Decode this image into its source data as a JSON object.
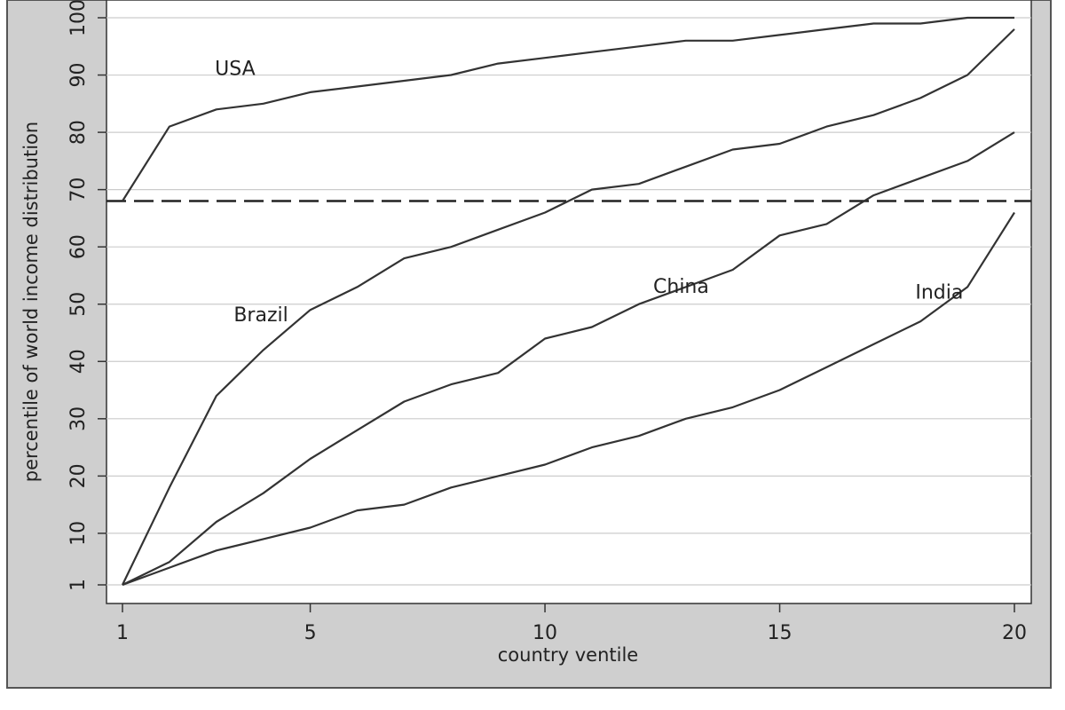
{
  "chart_data": {
    "type": "line",
    "title": "",
    "xlabel": "country ventile",
    "ylabel": "percentile of world income distribution",
    "xlim": [
      1,
      20
    ],
    "ylim": [
      1,
      100
    ],
    "xticks": [
      1,
      5,
      10,
      15,
      20
    ],
    "yticks": [
      1,
      10,
      20,
      30,
      40,
      50,
      60,
      70,
      80,
      90,
      100
    ],
    "grid": true,
    "x": [
      1,
      2,
      3,
      4,
      5,
      6,
      7,
      8,
      9,
      10,
      11,
      12,
      13,
      14,
      15,
      16,
      17,
      18,
      19,
      20
    ],
    "series": [
      {
        "name": "USA",
        "values": [
          68,
          81,
          84,
          85,
          87,
          88,
          89,
          90,
          92,
          93,
          94,
          95,
          96,
          96,
          97,
          98,
          99,
          99,
          100,
          100
        ]
      },
      {
        "name": "Brazil",
        "values": [
          1,
          18,
          34,
          42,
          49,
          53,
          58,
          60,
          63,
          66,
          70,
          71,
          74,
          77,
          78,
          81,
          83,
          86,
          90,
          98
        ]
      },
      {
        "name": "China",
        "values": [
          1,
          5,
          12,
          17,
          23,
          28,
          33,
          36,
          38,
          44,
          46,
          50,
          53,
          56,
          62,
          64,
          69,
          72,
          75,
          80
        ]
      },
      {
        "name": "India",
        "values": [
          1,
          4,
          7,
          9,
          11,
          14,
          15,
          18,
          20,
          22,
          25,
          27,
          30,
          32,
          35,
          39,
          43,
          47,
          53,
          66
        ]
      }
    ],
    "reference_line": {
      "y": 68,
      "style": "dashed"
    },
    "colors": {
      "axis": "#333333",
      "line": "#333333",
      "grid": "#cccccc",
      "reference": "#222222",
      "frame": "#555555",
      "frame_fill": "#cfcfcf"
    }
  }
}
